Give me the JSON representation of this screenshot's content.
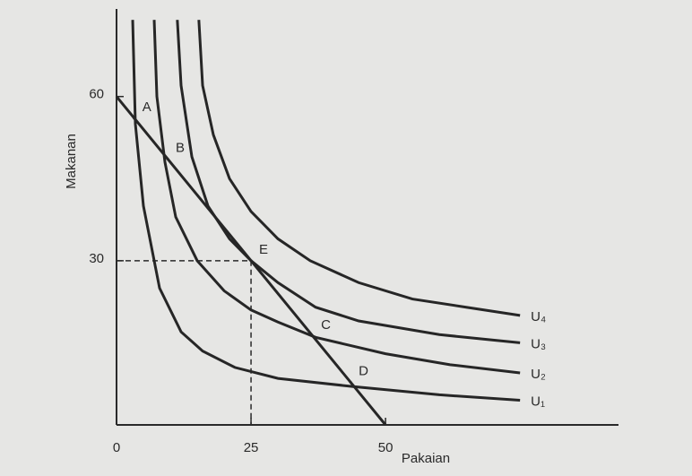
{
  "chart_data": {
    "type": "line",
    "xlabel": "Pakaian",
    "ylabel": "Makanan",
    "xlim": [
      0,
      93.3
    ],
    "ylim": [
      0,
      76
    ],
    "xticks": [
      0,
      25,
      50
    ],
    "yticks": [
      30,
      60
    ],
    "series": [
      {
        "name": "U₁",
        "color": "#262626",
        "x": [
          3,
          3.5,
          5,
          8,
          12,
          16,
          22,
          30,
          44,
          60,
          75
        ],
        "values": [
          74,
          55,
          40,
          25,
          17,
          13.5,
          10.5,
          8.5,
          7,
          5.5,
          4.5
        ]
      },
      {
        "name": "U₂",
        "color": "#262626",
        "x": [
          7,
          7.5,
          9,
          11,
          15,
          20,
          25,
          30,
          37,
          50,
          62,
          75
        ],
        "values": [
          74,
          60,
          48,
          38,
          30,
          24.5,
          21,
          18.8,
          16,
          13,
          11,
          9.5
        ]
      },
      {
        "name": "U₃",
        "color": "#262626",
        "x": [
          11.3,
          12,
          14,
          17,
          21,
          25,
          30,
          37,
          45,
          60,
          75
        ],
        "values": [
          74,
          62,
          49,
          40,
          34,
          30,
          26,
          21.5,
          19,
          16.5,
          15
        ]
      },
      {
        "name": "U₄",
        "color": "#262626",
        "x": [
          15.3,
          16,
          18,
          21,
          25,
          30,
          36,
          45,
          55,
          65,
          75
        ],
        "values": [
          74,
          62,
          53,
          45,
          39,
          34,
          30,
          26,
          23,
          21.5,
          20
        ]
      },
      {
        "color": "#262626",
        "x": [
          0,
          50
        ],
        "values": [
          60,
          0
        ]
      }
    ],
    "points": [
      {
        "label": "A",
        "x": 3.3,
        "y": 56
      },
      {
        "label": "B",
        "x": 9.5,
        "y": 48.6
      },
      {
        "label": "E",
        "x": 25,
        "y": 30
      },
      {
        "label": "C",
        "x": 36.5,
        "y": 16.2
      },
      {
        "label": "D",
        "x": 43.5,
        "y": 7.8
      }
    ]
  }
}
